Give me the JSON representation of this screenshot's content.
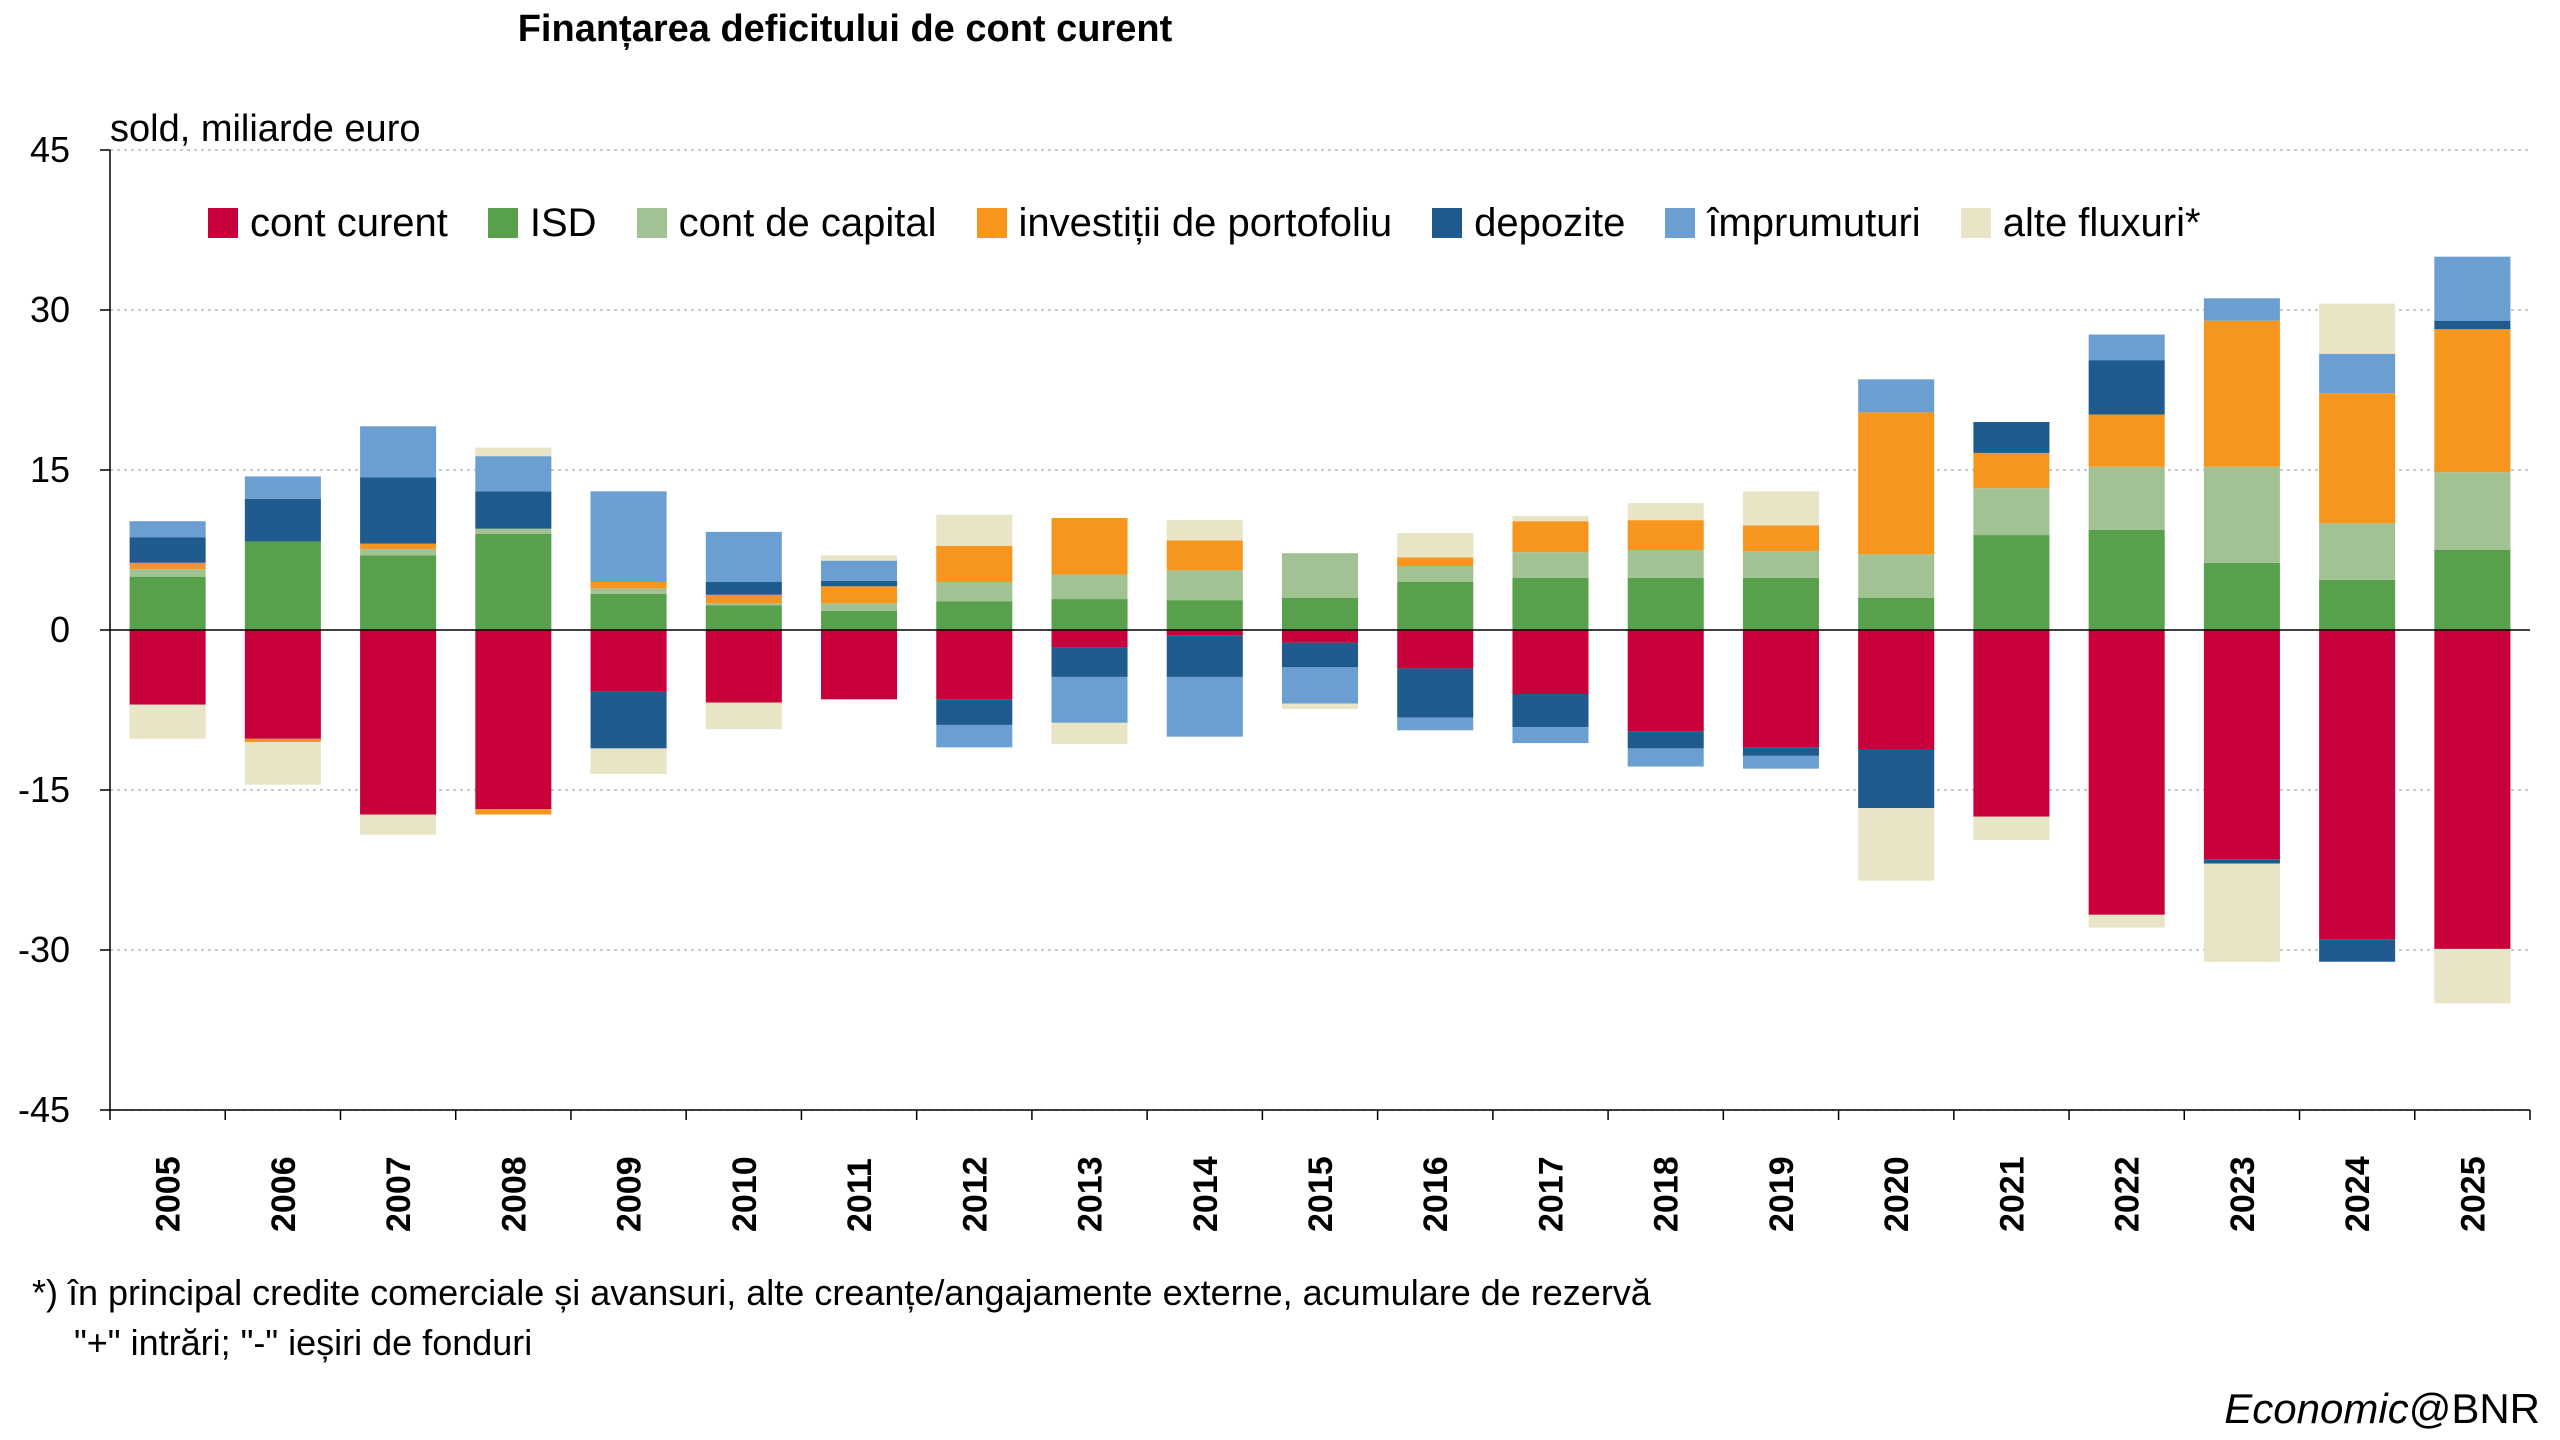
{
  "chart_data": {
    "type": "bar",
    "stacked": true,
    "title": "Finanțarea deficitului de cont curent",
    "ylabel": "sold, miliarde euro",
    "ylim": [
      -45,
      45
    ],
    "yticks": [
      45,
      30,
      15,
      0,
      -15,
      -30,
      -45
    ],
    "grid": true,
    "legend_position": "top",
    "categories": [
      "2005",
      "2006",
      "2007",
      "2008",
      "2009",
      "2010",
      "2011",
      "2012",
      "2013",
      "2014",
      "2015",
      "2016",
      "2017",
      "2018",
      "2019",
      "2020",
      "2021",
      "2022",
      "2023",
      "2024",
      "2025"
    ],
    "series": [
      {
        "name": "cont curent",
        "color": "#C8003C",
        "values": [
          -7,
          -10.2,
          -17.3,
          -16.8,
          -5.8,
          -6.8,
          -6.5,
          -6.5,
          -1.6,
          -0.5,
          -1.2,
          -3.6,
          -6,
          -9.5,
          -11,
          -11.2,
          -17.5,
          -26.7,
          -21.5,
          -29,
          -29.9
        ]
      },
      {
        "name": "ISD",
        "color": "#58A04C",
        "values": [
          5,
          8.3,
          7,
          9,
          3.4,
          2.3,
          1.8,
          2.7,
          2.9,
          2.8,
          3,
          4.5,
          4.9,
          4.9,
          4.9,
          3,
          8.9,
          9.4,
          6.3,
          4.7,
          7.5
        ]
      },
      {
        "name": "cont de capital",
        "color": "#A3C293",
        "values": [
          0.7,
          0,
          0.6,
          0.5,
          0.5,
          0.2,
          0.7,
          1.8,
          2.3,
          2.8,
          4.2,
          1.5,
          2.4,
          2.6,
          2.5,
          4.1,
          4.4,
          5.9,
          9,
          5.3,
          7.3
        ]
      },
      {
        "name": "investiții de portofoliu",
        "color": "#F7961E",
        "values": [
          0.6,
          -0.3,
          0.5,
          -0.5,
          0.6,
          0.8,
          1.6,
          3.4,
          5.3,
          2.8,
          0,
          0.8,
          2.9,
          2.8,
          2.4,
          13.3,
          3.3,
          4.9,
          13.7,
          12.2,
          13.4
        ]
      },
      {
        "name": "depozite",
        "color": "#1F5B8E",
        "values": [
          2.4,
          4,
          6.2,
          3.5,
          -5.3,
          1.2,
          0.5,
          -2.4,
          -2.8,
          -3.9,
          -2.3,
          -4.6,
          -3.1,
          -1.6,
          -0.8,
          -5.5,
          2.9,
          5.1,
          -0.4,
          -2.1,
          0.8
        ]
      },
      {
        "name": "împrumuturi",
        "color": "#6C9FD1",
        "values": [
          1.5,
          2.1,
          4.8,
          3.3,
          8.5,
          4.7,
          1.9,
          -2.1,
          -4.3,
          -5.6,
          -3.4,
          -1.2,
          -1.5,
          -1.7,
          -1.2,
          3.1,
          0,
          2.4,
          2.1,
          3.7,
          6
        ]
      },
      {
        "name": "alte fluxuri*",
        "color": "#E8E4C6",
        "values": [
          -3.2,
          -4,
          -1.9,
          0.8,
          -2.4,
          -2.5,
          0.5,
          2.9,
          -2,
          1.9,
          -0.5,
          2.3,
          0.5,
          1.6,
          3.2,
          -6.8,
          -2.2,
          -1.2,
          -9.2,
          4.7,
          -5.1
        ]
      }
    ]
  },
  "footnote": {
    "line1": "*) în principal credite comerciale și avansuri, alte creanțe/angajamente externe, acumulare de rezervă",
    "line2": "\"+\" intrări; \"-\" ieșiri de fonduri"
  },
  "credit": {
    "italic": "Economic",
    "rest": "@BNR"
  }
}
